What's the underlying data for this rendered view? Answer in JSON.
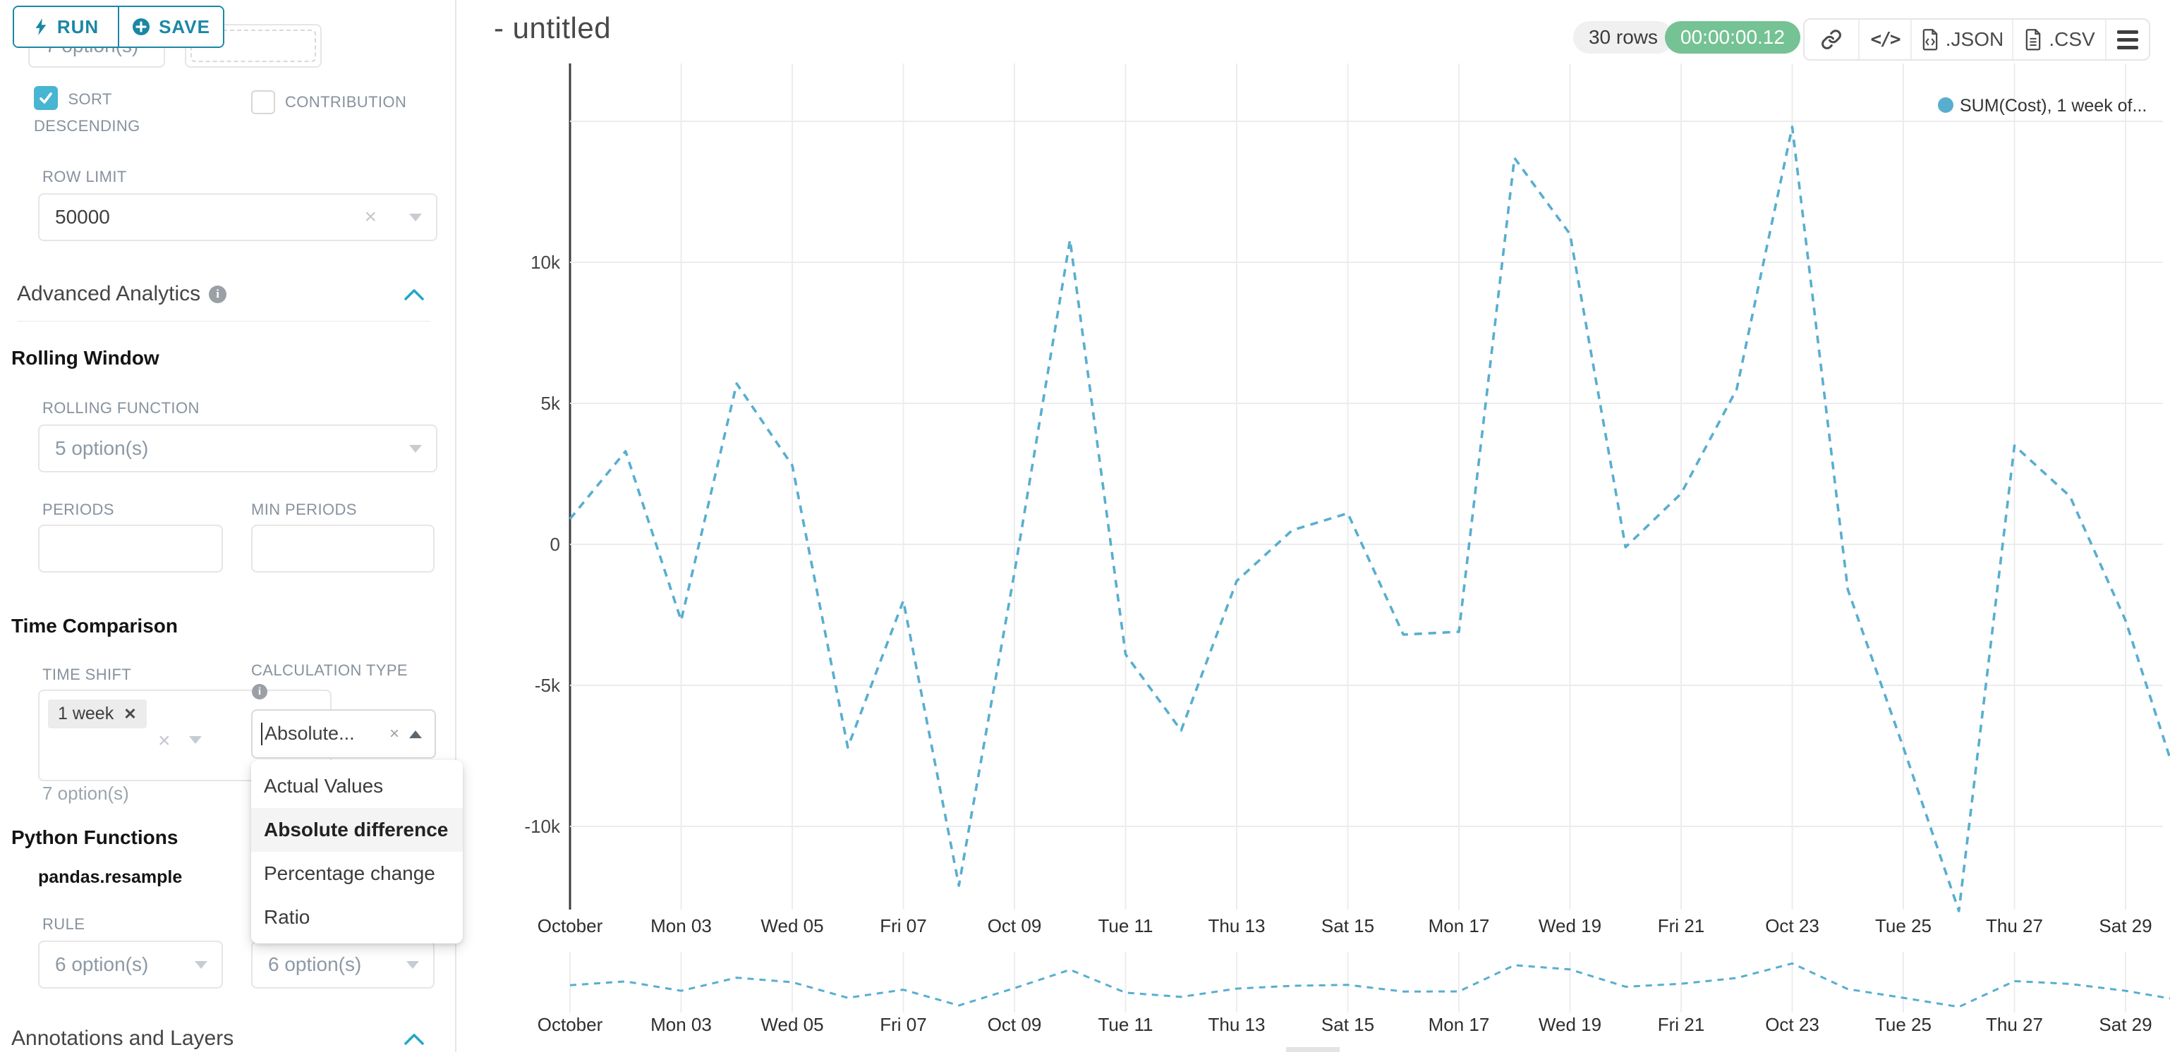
{
  "toolbar": {
    "run_label": "RUN",
    "save_label": "SAVE"
  },
  "panel": {
    "top_row": {
      "left_value": "7 option(s)"
    },
    "sort_descending": {
      "label": "SORT DESCENDING",
      "checked": true
    },
    "contribution": {
      "label": "CONTRIBUTION",
      "checked": false
    },
    "row_limit": {
      "label": "ROW LIMIT",
      "value": "50000"
    },
    "advanced_analytics": {
      "title": "Advanced Analytics"
    },
    "rolling_window": {
      "title": "Rolling Window",
      "rolling_function": {
        "label": "ROLLING FUNCTION",
        "value": "5 option(s)"
      },
      "periods": {
        "label": "PERIODS",
        "value": ""
      },
      "min_periods": {
        "label": "MIN PERIODS",
        "value": ""
      }
    },
    "time_comparison": {
      "title": "Time Comparison",
      "time_shift": {
        "label": "TIME SHIFT",
        "chip": "1 week",
        "helper": "7 option(s)"
      },
      "calculation_type": {
        "label": "CALCULATION TYPE",
        "value": "Absolute...",
        "options": [
          "Actual Values",
          "Absolute difference",
          "Percentage change",
          "Ratio"
        ],
        "selected_index": 1
      }
    },
    "python_functions": {
      "title": "Python Functions",
      "subtitle": "pandas.resample",
      "rule": {
        "label": "RULE",
        "value": "6 option(s)"
      },
      "method": {
        "value": "6 option(s)"
      }
    },
    "annotations": {
      "title": "Annotations and Layers"
    }
  },
  "header": {
    "title": "- untitled",
    "rows_badge": "30 rows",
    "timer_badge": "00:00:00.12",
    "json_label": ".JSON",
    "csv_label": ".CSV"
  },
  "chart_data": {
    "type": "line",
    "title": "- untitled",
    "legend": [
      {
        "name": "SUM(Cost), 1 week of...",
        "color": "#58aecf"
      }
    ],
    "line_style": "dashed",
    "grid": true,
    "legend_position": "top-right",
    "categories": [
      "Oct 01",
      "Oct 02",
      "Oct 03",
      "Oct 04",
      "Oct 05",
      "Oct 06",
      "Oct 07",
      "Oct 08",
      "Oct 09",
      "Oct 10",
      "Oct 11",
      "Oct 12",
      "Oct 13",
      "Oct 14",
      "Oct 15",
      "Oct 16",
      "Oct 17",
      "Oct 18",
      "Oct 19",
      "Oct 20",
      "Oct 21",
      "Oct 22",
      "Oct 23",
      "Oct 24",
      "Oct 25",
      "Oct 26",
      "Oct 27",
      "Oct 28",
      "Oct 29",
      "Oct 30"
    ],
    "series": [
      {
        "name": "SUM(Cost), 1 week of...",
        "values": [
          900,
          3300,
          -2700,
          5700,
          2800,
          -7200,
          -2000,
          -12100,
          -1000,
          10800,
          -3900,
          -6600,
          -1300,
          500,
          1100,
          -3200,
          -3100,
          13700,
          11000,
          -100,
          1800,
          5500,
          14800,
          -1600,
          -7200,
          -13000,
          3500,
          1700,
          -2700,
          -8800
        ]
      }
    ],
    "x_tick_labels": [
      "October",
      "Mon 03",
      "Wed 05",
      "Fri 07",
      "Oct 09",
      "Tue 11",
      "Thu 13",
      "Sat 15",
      "Mon 17",
      "Wed 19",
      "Fri 21",
      "Oct 23",
      "Tue 25",
      "Thu 27",
      "Sat 29"
    ],
    "x_tick_indices": [
      0,
      2,
      4,
      6,
      8,
      10,
      12,
      14,
      16,
      18,
      20,
      22,
      24,
      26,
      28
    ],
    "y_ticks": [
      {
        "label": "",
        "value": 15000
      },
      {
        "label": "10k",
        "value": 10000
      },
      {
        "label": "5k",
        "value": 5000
      },
      {
        "label": "0",
        "value": 0
      },
      {
        "label": "-5k",
        "value": -5000
      },
      {
        "label": "-10k",
        "value": -10000
      }
    ],
    "ylim": [
      -13050,
      17050
    ],
    "xlabel": "",
    "ylabel": "",
    "mini_preview": {
      "shows_same_series": true
    }
  }
}
